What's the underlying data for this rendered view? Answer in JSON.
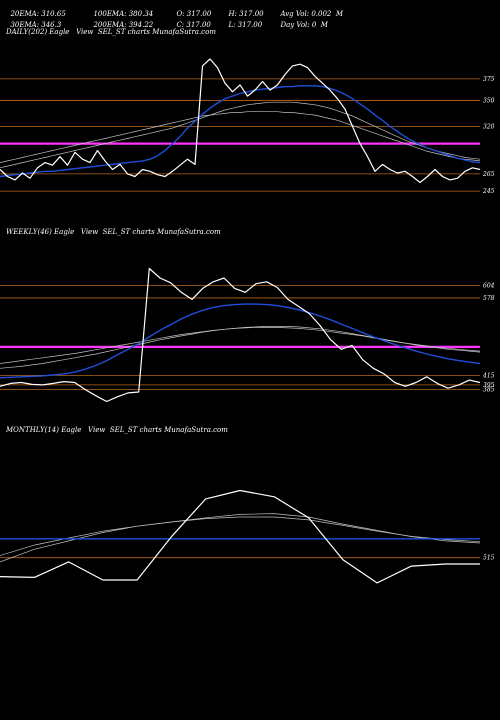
{
  "header": {
    "row1": [
      {
        "key": "ema20",
        "text": "20EMA: 310.65"
      },
      {
        "key": "ema100",
        "text": "100EMA: 380.34"
      },
      {
        "key": "open",
        "text": "O: 317.00"
      },
      {
        "key": "high",
        "text": "H: 317.00"
      },
      {
        "key": "avgvol",
        "text": "Avg Vol: 0.002  M"
      }
    ],
    "row2": [
      {
        "key": "ema30",
        "text": "30EMA: 346.3"
      },
      {
        "key": "ema200",
        "text": "200EMA: 394.22"
      },
      {
        "key": "close",
        "text": "C: 317.00"
      },
      {
        "key": "low",
        "text": "L: 317.00"
      },
      {
        "key": "dayvol",
        "text": "Day Vol: 0  M"
      }
    ]
  },
  "colors": {
    "background": "#000000",
    "price": "#ffffff",
    "ema_short": "#1f4fd8",
    "ema_long": "#c0c0c0",
    "ema_magenta": "#ff33ff",
    "level": "#b8651e"
  },
  "chart_data": [
    {
      "type": "line",
      "title": "DAILY(202) Eagle   View  SEL_ST charts MunafaSutra.com",
      "ylim": [
        200,
        420
      ],
      "levels": [
        375,
        350,
        320,
        265,
        245
      ],
      "level_labels": [
        "375",
        "350",
        "320",
        "265",
        "245"
      ],
      "magenta_level": 300,
      "series": [
        {
          "role": "price",
          "values": [
            270,
            262,
            258,
            266,
            260,
            272,
            278,
            275,
            285,
            275,
            290,
            282,
            278,
            292,
            280,
            270,
            276,
            265,
            262,
            270,
            268,
            264,
            262,
            268,
            275,
            282,
            276,
            390,
            398,
            388,
            370,
            360,
            368,
            355,
            362,
            372,
            362,
            368,
            380,
            390,
            392,
            388,
            378,
            370,
            362,
            352,
            340,
            320,
            300,
            285,
            268,
            276,
            270,
            266,
            268,
            262,
            255,
            262,
            270,
            262,
            258,
            260,
            268,
            272,
            270
          ]
        },
        {
          "role": "ema_short",
          "values": [
            262,
            263,
            264,
            265,
            266,
            267,
            268,
            268,
            269,
            270,
            271,
            272,
            273,
            274,
            275,
            276,
            277,
            278,
            279,
            280,
            282,
            286,
            292,
            300,
            308,
            318,
            326,
            334,
            341,
            347,
            352,
            355,
            358,
            360,
            362,
            363,
            364,
            365,
            366,
            366,
            367,
            367,
            367,
            366,
            364,
            361,
            357,
            352,
            346,
            340,
            333,
            327,
            320,
            314,
            308,
            303,
            299,
            295,
            292,
            289,
            286,
            283,
            281,
            279,
            278
          ]
        },
        {
          "role": "ema_long_a",
          "values": [
            278,
            280,
            282,
            284,
            286,
            288,
            290,
            292,
            294,
            296,
            298,
            300,
            302,
            304,
            306,
            308,
            310,
            312,
            314,
            316,
            318,
            320,
            322,
            324,
            326,
            328,
            330,
            332,
            333,
            334,
            335,
            336,
            336,
            337,
            337,
            337,
            337,
            337,
            336,
            336,
            335,
            334,
            333,
            331,
            329,
            327,
            324,
            321,
            318,
            315,
            312,
            309,
            306,
            303,
            300,
            297,
            294,
            291,
            289,
            287,
            285,
            283,
            282,
            281,
            280
          ]
        },
        {
          "role": "ema_long_b",
          "values": [
            272,
            274,
            276,
            278,
            280,
            282,
            284,
            286,
            288,
            290,
            292,
            294,
            296,
            298,
            300,
            302,
            304,
            306,
            308,
            310,
            312,
            314,
            316,
            318,
            321,
            324,
            327,
            330,
            333,
            336,
            339,
            341,
            343,
            345,
            346,
            347,
            348,
            348,
            348,
            348,
            347,
            346,
            345,
            343,
            341,
            338,
            335,
            332,
            328,
            324,
            320,
            316,
            312,
            308,
            304,
            301,
            298,
            295,
            292,
            290,
            288,
            286,
            284,
            283,
            282
          ]
        }
      ]
    },
    {
      "type": "line",
      "title": "WEEKLY(46) Eagle   View  SEL_ST charts MunafaSutra.com",
      "ylim": [
        300,
        700
      ],
      "levels": [
        604,
        578,
        415,
        395,
        385
      ],
      "level_labels": [
        "604",
        "578",
        "415",
        "395",
        "385"
      ],
      "magenta_level": 475,
      "series": [
        {
          "role": "price",
          "values": [
            392,
            398,
            400,
            396,
            395,
            398,
            402,
            400,
            385,
            372,
            360,
            370,
            378,
            380,
            640,
            620,
            610,
            590,
            575,
            598,
            612,
            620,
            598,
            590,
            608,
            612,
            600,
            575,
            560,
            545,
            520,
            490,
            470,
            478,
            448,
            430,
            418,
            400,
            392,
            400,
            412,
            398,
            388,
            395,
            405,
            400
          ]
        },
        {
          "role": "ema_short",
          "values": [
            410,
            411,
            412,
            413,
            414,
            416,
            418,
            422,
            428,
            436,
            446,
            458,
            470,
            482,
            496,
            510,
            522,
            534,
            544,
            552,
            558,
            562,
            564,
            565,
            565,
            564,
            562,
            558,
            553,
            547,
            540,
            532,
            523,
            514,
            505,
            496,
            488,
            480,
            473,
            466,
            460,
            455,
            450,
            446,
            443,
            440
          ]
        },
        {
          "role": "ema_long_a",
          "values": [
            430,
            432,
            434,
            437,
            440,
            444,
            448,
            452,
            456,
            460,
            465,
            470,
            475,
            480,
            485,
            490,
            494,
            498,
            502,
            506,
            509,
            512,
            514,
            516,
            517,
            518,
            518,
            518,
            517,
            515,
            513,
            510,
            507,
            503,
            499,
            495,
            491,
            487,
            483,
            479,
            476,
            473,
            470,
            468,
            466,
            464
          ]
        },
        {
          "role": "ema_long_b",
          "values": [
            440,
            443,
            446,
            449,
            452,
            455,
            458,
            461,
            465,
            469,
            473,
            477,
            481,
            485,
            489,
            493,
            497,
            501,
            504,
            507,
            510,
            512,
            514,
            515,
            516,
            516,
            516,
            515,
            514,
            512,
            510,
            507,
            504,
            501,
            498,
            494,
            490,
            486,
            483,
            480,
            477,
            474,
            472,
            470,
            468,
            466
          ]
        }
      ]
    },
    {
      "type": "line",
      "title": "MONTHLY(14) Eagle   View  SEL_ST charts MunafaSutra.com",
      "ylim": [
        300,
        800
      ],
      "levels": [
        515
      ],
      "level_labels": [
        "515"
      ],
      "series": [
        {
          "role": "price",
          "values": [
            470,
            468,
            505,
            462,
            462,
            565,
            655,
            675,
            660,
            610,
            510,
            455,
            495,
            500,
            500
          ]
        },
        {
          "role": "ema_short",
          "values": [
            560,
            560,
            560,
            560,
            560,
            560,
            560,
            560,
            560,
            560,
            560,
            560,
            560,
            560,
            560
          ]
        },
        {
          "role": "ema_long_a",
          "values": [
            505,
            535,
            555,
            575,
            590,
            600,
            610,
            618,
            620,
            612,
            595,
            580,
            565,
            555,
            550
          ]
        },
        {
          "role": "ema_long_b",
          "values": [
            520,
            545,
            562,
            578,
            590,
            600,
            608,
            612,
            612,
            605,
            592,
            578,
            566,
            558,
            553
          ]
        }
      ]
    }
  ]
}
